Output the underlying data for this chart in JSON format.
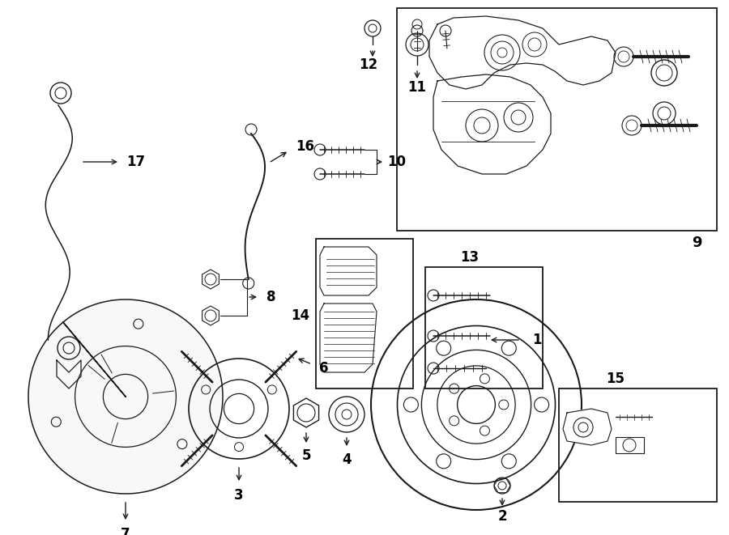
{
  "bg": "#ffffff",
  "lc": "#1a1a1a",
  "fig_w": 9.0,
  "fig_h": 6.61,
  "dpi": 100
}
